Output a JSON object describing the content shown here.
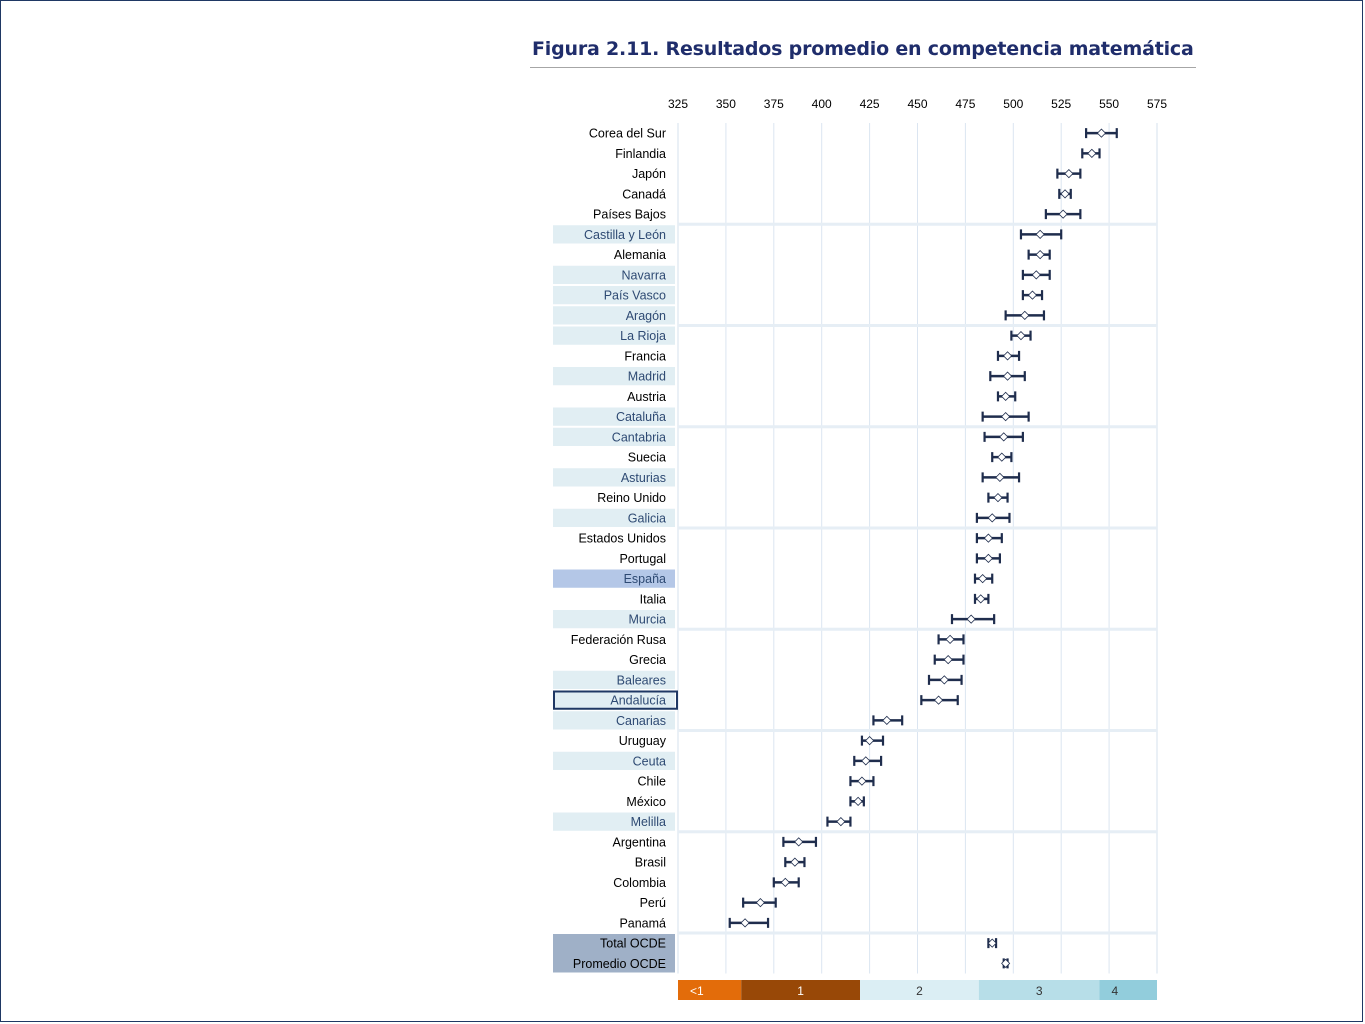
{
  "title": "Figura 2.11. Resultados promedio en competencia matemática",
  "chart_data": {
    "type": "dot-interval",
    "title": "Figura 2.11. Resultados promedio en competencia matemática",
    "xlim": [
      325,
      575
    ],
    "xticks": [
      325,
      350,
      375,
      400,
      425,
      450,
      475,
      500,
      525,
      550,
      575
    ],
    "grid": true,
    "rows": [
      {
        "label": "Corea del Sur",
        "kind": "country",
        "mean": 546,
        "low": 538,
        "high": 554
      },
      {
        "label": "Finlandia",
        "kind": "country",
        "mean": 541,
        "low": 536,
        "high": 545
      },
      {
        "label": "Japón",
        "kind": "country",
        "mean": 529,
        "low": 523,
        "high": 535
      },
      {
        "label": "Canadá",
        "kind": "country",
        "mean": 527,
        "low": 524,
        "high": 530
      },
      {
        "label": "Países Bajos",
        "kind": "country",
        "mean": 526,
        "low": 517,
        "high": 535
      },
      {
        "label": "Castilla y León",
        "kind": "region",
        "mean": 514,
        "low": 504,
        "high": 525
      },
      {
        "label": "Alemania",
        "kind": "country",
        "mean": 514,
        "low": 508,
        "high": 519
      },
      {
        "label": "Navarra",
        "kind": "region",
        "mean": 512,
        "low": 505,
        "high": 519
      },
      {
        "label": "País Vasco",
        "kind": "region",
        "mean": 510,
        "low": 505,
        "high": 515
      },
      {
        "label": "Aragón",
        "kind": "region",
        "mean": 506,
        "low": 496,
        "high": 516
      },
      {
        "label": "La Rioja",
        "kind": "region",
        "mean": 504,
        "low": 499,
        "high": 509
      },
      {
        "label": "Francia",
        "kind": "country",
        "mean": 497,
        "low": 492,
        "high": 503
      },
      {
        "label": "Madrid",
        "kind": "region",
        "mean": 497,
        "low": 488,
        "high": 506
      },
      {
        "label": "Austria",
        "kind": "country",
        "mean": 496,
        "low": 492,
        "high": 501
      },
      {
        "label": "Cataluña",
        "kind": "region",
        "mean": 496,
        "low": 484,
        "high": 508
      },
      {
        "label": "Cantabria",
        "kind": "region",
        "mean": 495,
        "low": 485,
        "high": 505
      },
      {
        "label": "Suecia",
        "kind": "country",
        "mean": 494,
        "low": 489,
        "high": 499
      },
      {
        "label": "Asturias",
        "kind": "region",
        "mean": 493,
        "low": 484,
        "high": 503
      },
      {
        "label": "Reino Unido",
        "kind": "country",
        "mean": 492,
        "low": 487,
        "high": 497
      },
      {
        "label": "Galicia",
        "kind": "region",
        "mean": 489,
        "low": 481,
        "high": 498
      },
      {
        "label": "Estados Unidos",
        "kind": "country",
        "mean": 487,
        "low": 481,
        "high": 494
      },
      {
        "label": "Portugal",
        "kind": "country",
        "mean": 487,
        "low": 481,
        "high": 493
      },
      {
        "label": "España",
        "kind": "spain",
        "mean": 484,
        "low": 480,
        "high": 489
      },
      {
        "label": "Italia",
        "kind": "country",
        "mean": 483,
        "low": 480,
        "high": 487
      },
      {
        "label": "Murcia",
        "kind": "region",
        "mean": 478,
        "low": 468,
        "high": 490
      },
      {
        "label": "Federación Rusa",
        "kind": "country",
        "mean": 467,
        "low": 461,
        "high": 474
      },
      {
        "label": "Grecia",
        "kind": "country",
        "mean": 466,
        "low": 459,
        "high": 474
      },
      {
        "label": "Baleares",
        "kind": "region",
        "mean": 464,
        "low": 456,
        "high": 473
      },
      {
        "label": "Andalucía",
        "kind": "region-selected",
        "mean": 461,
        "low": 452,
        "high": 471
      },
      {
        "label": "Canarias",
        "kind": "region",
        "mean": 434,
        "low": 427,
        "high": 442
      },
      {
        "label": "Uruguay",
        "kind": "country",
        "mean": 425,
        "low": 421,
        "high": 432
      },
      {
        "label": "Ceuta",
        "kind": "region",
        "mean": 423,
        "low": 417,
        "high": 431
      },
      {
        "label": "Chile",
        "kind": "country",
        "mean": 421,
        "low": 415,
        "high": 427
      },
      {
        "label": "México",
        "kind": "country",
        "mean": 419,
        "low": 415,
        "high": 422
      },
      {
        "label": "Melilla",
        "kind": "region",
        "mean": 410,
        "low": 403,
        "high": 415
      },
      {
        "label": "Argentina",
        "kind": "country",
        "mean": 388,
        "low": 380,
        "high": 397
      },
      {
        "label": "Brasil",
        "kind": "country",
        "mean": 386,
        "low": 381,
        "high": 391
      },
      {
        "label": "Colombia",
        "kind": "country",
        "mean": 381,
        "low": 375,
        "high": 388
      },
      {
        "label": "Perú",
        "kind": "country",
        "mean": 368,
        "low": 359,
        "high": 376
      },
      {
        "label": "Panamá",
        "kind": "country",
        "mean": 360,
        "low": 352,
        "high": 372
      },
      {
        "label": "Total OCDE",
        "kind": "total",
        "mean": 489,
        "low": 487,
        "high": 491
      },
      {
        "label": "Promedio OCDE",
        "kind": "total",
        "mean": 496,
        "low": 495,
        "high": 497
      }
    ],
    "levels": [
      {
        "label": "<1",
        "from": 325,
        "to": 358,
        "color": "#e36c0a"
      },
      {
        "label": "1",
        "from": 358,
        "to": 420,
        "color": "#984807"
      },
      {
        "label": "2",
        "from": 420,
        "to": 482,
        "color": "#dbeef4"
      },
      {
        "label": "3",
        "from": 482,
        "to": 545,
        "color": "#b7dee8"
      },
      {
        "label": "4",
        "from": 545,
        "to": 575,
        "color": "#92cddc"
      }
    ],
    "colors": {
      "bar": "#1f2d4d",
      "region_bg": "#e1eef3",
      "spain_bg": "#b4c7e7",
      "total_bg": "#9fb0c7",
      "grid": "#dbe5f1",
      "separator": "#e6eef5",
      "selected_border": "#1f3864",
      "region_text": "#2e4a73",
      "title": "#1f2d6b"
    }
  }
}
